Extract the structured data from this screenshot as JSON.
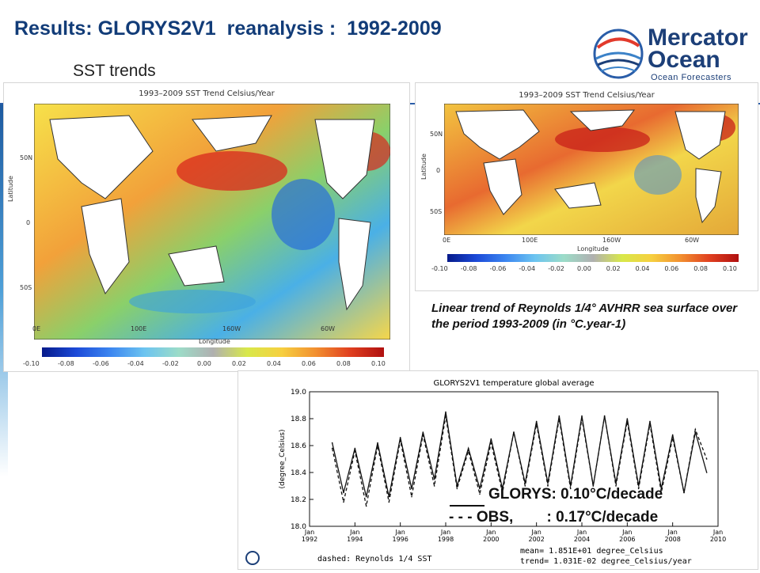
{
  "header": {
    "title": "Results: GLORYS2V1  reanalysis :  1992-2009",
    "subtitle": "SST trends"
  },
  "logo": {
    "line1": "Mercator",
    "line2": "Ocean",
    "tagline": "Ocean Forecasters"
  },
  "colors": {
    "title": "#123c78",
    "accent": "#2a5da8",
    "logo": "#1c3f78"
  },
  "map_left": {
    "title": "1993–2009 SST Trend Celsius/Year",
    "ylabel": "Latitude",
    "xlabel": "Longitude",
    "lat_ticks": [
      "50N",
      "0",
      "50S"
    ],
    "lon_ticks": [
      "0E",
      "100E",
      "160W",
      "60W"
    ],
    "colorbar": [
      "-0.10",
      "-0.08",
      "-0.06",
      "-0.04",
      "-0.02",
      "0.00",
      "0.02",
      "0.04",
      "0.06",
      "0.08",
      "0.10"
    ]
  },
  "map_right": {
    "title": "1993–2009 SST Trend Celsius/Year",
    "ylabel": "Latitude",
    "xlabel": "Longitude",
    "lat_ticks": [
      "50N",
      "0",
      "50S"
    ],
    "lon_ticks": [
      "0E",
      "100E",
      "160W",
      "60W"
    ],
    "colorbar": [
      "-0.10",
      "-0.08",
      "-0.06",
      "-0.04",
      "-0.02",
      "0.00",
      "0.02",
      "0.04",
      "0.06",
      "0.08",
      "0.10"
    ]
  },
  "caption": "Linear trend of Reynolds 1/4° AVHRR sea surface over the period 1993-2009 (in °C.year-1)",
  "chart_data": {
    "type": "line",
    "title": "GLORYS2V1 temperature global average",
    "ylabel": "(degree_Celsius)",
    "ylim": [
      18.0,
      19.0
    ],
    "yticks": [
      "18.0",
      "18.2",
      "18.4",
      "18.6",
      "18.8",
      "19.0"
    ],
    "xlim": [
      1992,
      2010
    ],
    "xticks": [
      "Jan\n1992",
      "Jan\n1994",
      "Jan\n1996",
      "Jan\n1998",
      "Jan\n2000",
      "Jan\n2002",
      "Jan\n2004",
      "Jan\n2006",
      "Jan\n2008",
      "Jan\n2010"
    ],
    "x": [
      1993.0,
      1993.5,
      1994.0,
      1994.5,
      1995.0,
      1995.5,
      1996.0,
      1996.5,
      1997.0,
      1997.5,
      1998.0,
      1998.5,
      1999.0,
      1999.5,
      2000.0,
      2000.5,
      2001.0,
      2001.5,
      2002.0,
      2002.5,
      2003.0,
      2003.5,
      2004.0,
      2004.5,
      2005.0,
      2005.5,
      2006.0,
      2006.5,
      2007.0,
      2007.5,
      2008.0,
      2008.5,
      2009.0,
      2009.5
    ],
    "series": [
      {
        "name": "GLORYS",
        "values": [
          18.62,
          18.25,
          18.58,
          18.22,
          18.62,
          18.22,
          18.66,
          18.28,
          18.7,
          18.35,
          18.85,
          18.3,
          18.58,
          18.28,
          18.65,
          18.28,
          18.7,
          18.32,
          18.78,
          18.32,
          18.82,
          18.3,
          18.82,
          18.3,
          18.82,
          18.32,
          18.8,
          18.3,
          18.78,
          18.28,
          18.68,
          18.25,
          18.7,
          18.4
        ]
      },
      {
        "name": "OBS",
        "values": [
          18.58,
          18.18,
          18.56,
          18.15,
          18.6,
          18.18,
          18.64,
          18.22,
          18.68,
          18.3,
          18.82,
          18.28,
          18.56,
          18.24,
          18.62,
          18.25,
          18.7,
          18.3,
          18.76,
          18.3,
          18.8,
          18.28,
          18.8,
          18.3,
          18.82,
          18.3,
          18.78,
          18.28,
          18.76,
          18.25,
          18.66,
          18.25,
          18.72,
          18.5
        ]
      }
    ],
    "legend": [
      "GLORYS: 0.10°C/decade",
      "- - - OBS,        : 0.17°C/decade"
    ],
    "footer_left": "dashed: Reynolds 1/4 SST",
    "footer_mean": "mean=    1.851E+01 degree_Celsius",
    "footer_trend": "trend=   1.031E-02 degree_Celsius/year"
  }
}
